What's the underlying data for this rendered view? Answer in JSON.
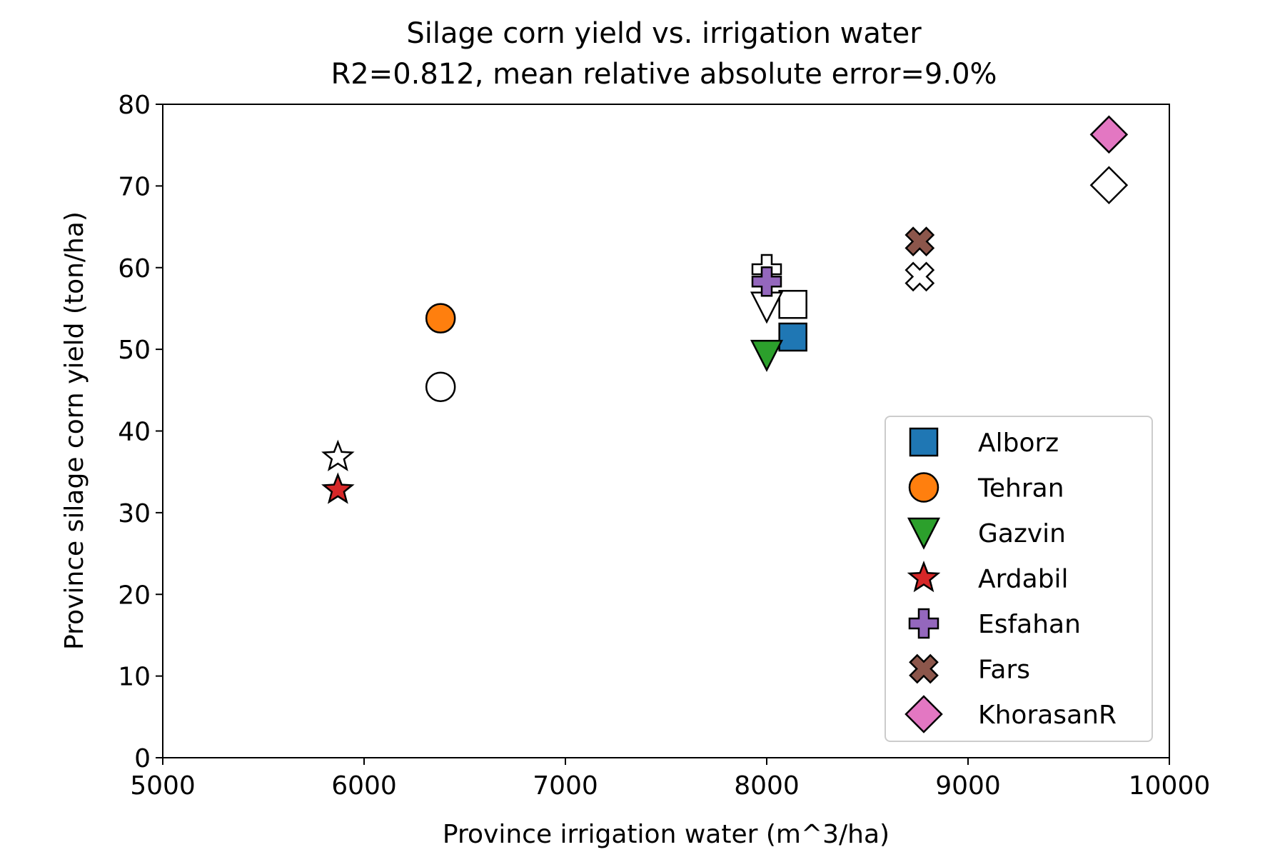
{
  "chart_data": {
    "type": "scatter",
    "title": "Silage corn yield vs. irrigation water",
    "subtitle": "R2=0.812, mean relative absolute error=9.0%",
    "xlabel": "Province irrigation water (m^3/ha)",
    "ylabel": "Province silage corn yield (ton/ha)",
    "xlim": [
      5000,
      10000
    ],
    "ylim": [
      0,
      80
    ],
    "x_ticks": [
      5000,
      6000,
      7000,
      8000,
      9000,
      10000
    ],
    "y_ticks": [
      0,
      10,
      20,
      30,
      40,
      50,
      60,
      70,
      80
    ],
    "grid": false,
    "legend_position": "lower-right",
    "series": [
      {
        "name": "Alborz",
        "marker": "square",
        "color": "#1f77b4",
        "x": 8130,
        "y": 51.5,
        "x_hollow": 8130,
        "y_hollow": 55.5
      },
      {
        "name": "Tehran",
        "marker": "circle",
        "color": "#ff7f0e",
        "x": 6380,
        "y": 53.8,
        "x_hollow": 6380,
        "y_hollow": 45.4
      },
      {
        "name": "Gazvin",
        "marker": "triangle-down",
        "color": "#2ca02c",
        "x": 8000,
        "y": 49.3,
        "x_hollow": 8000,
        "y_hollow": 55.2
      },
      {
        "name": "Ardabil",
        "marker": "star",
        "color": "#d62728",
        "x": 5870,
        "y": 32.8,
        "x_hollow": 5870,
        "y_hollow": 36.8
      },
      {
        "name": "Esfahan",
        "marker": "plus",
        "color": "#9467bd",
        "x": 8000,
        "y": 58.3,
        "x_hollow": 8000,
        "y_hollow": 59.8
      },
      {
        "name": "Fars",
        "marker": "x",
        "color": "#8c564b",
        "x": 8760,
        "y": 63.2,
        "x_hollow": 8760,
        "y_hollow": 58.9
      },
      {
        "name": "KhorasanR",
        "marker": "diamond",
        "color": "#e377c2",
        "x": 9700,
        "y": 76.3,
        "x_hollow": 9700,
        "y_hollow": 70.1
      }
    ]
  }
}
